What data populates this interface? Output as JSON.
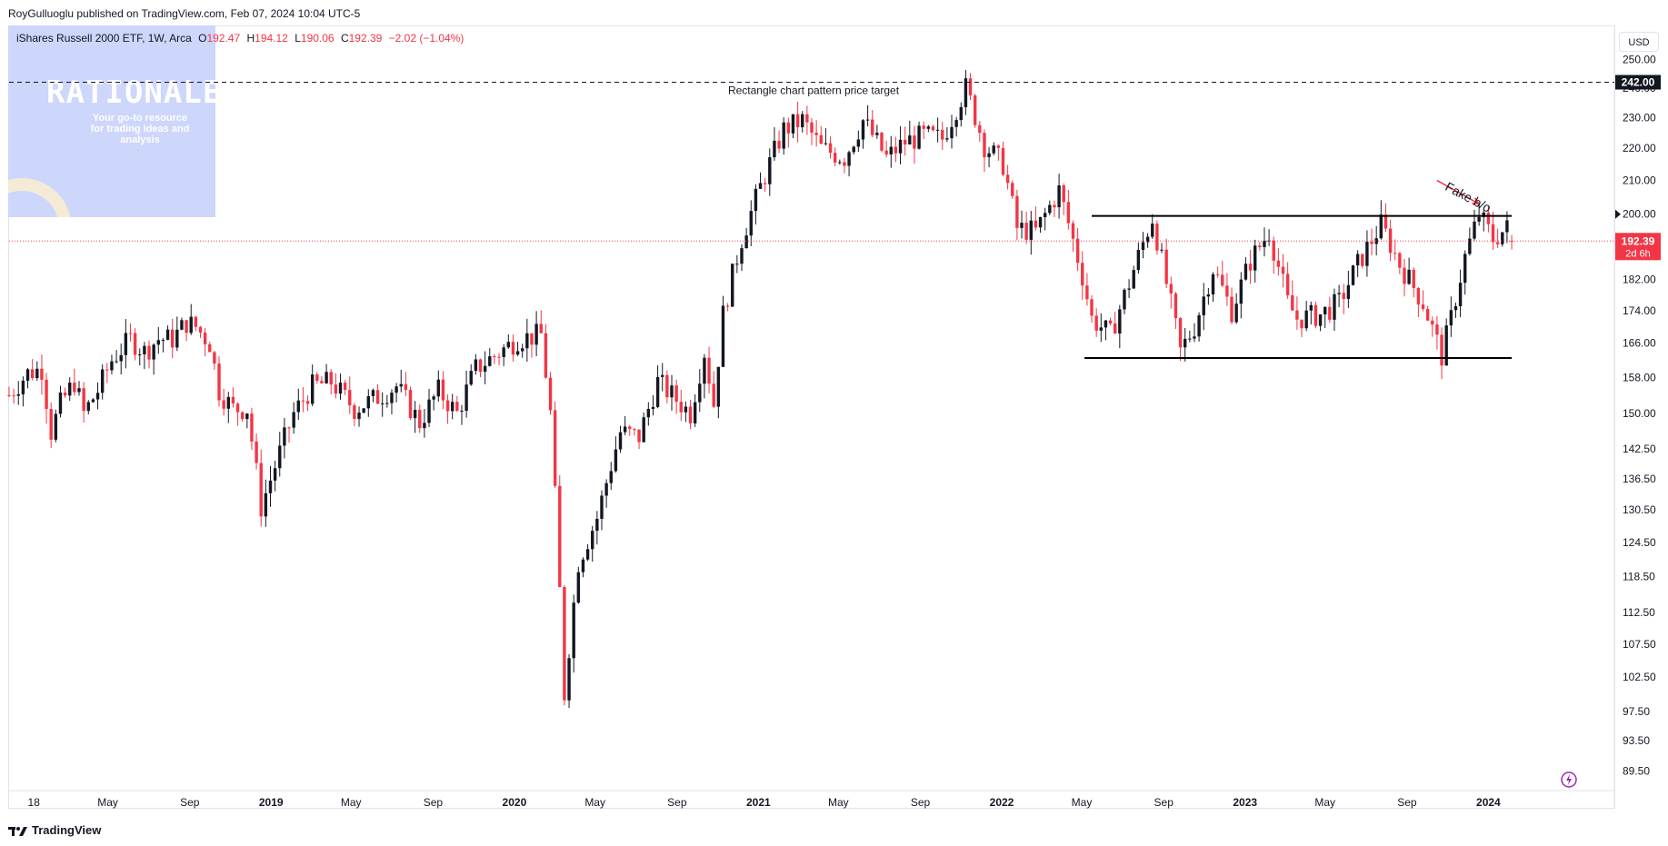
{
  "header": {
    "publisher": "RoyGulluoglu published on TradingView.com, Feb 07, 2024 10:04 UTC-5"
  },
  "legend": {
    "symbol": "iShares Russell 2000 ETF, 1W, Arca",
    "o_label": "O",
    "o_value": "192.47",
    "h_label": "H",
    "h_value": "194.12",
    "l_label": "L",
    "l_value": "190.06",
    "c_label": "C",
    "c_value": "192.39",
    "change": "−2.02 (−1.04%)"
  },
  "currency_button": "USD",
  "watermark": {
    "title": "RATIONALE",
    "tagline": "Your go-to resource for trading ideas and analysis"
  },
  "footer": {
    "brand": "TradingView"
  },
  "colors": {
    "up": "#131722",
    "down": "#f23645",
    "price_line": "#f23645",
    "axis_text": "#131722",
    "annotation_arrow": "#f23645"
  },
  "chart_data": {
    "type": "candlestick",
    "title": "iShares Russell 2000 ETF, 1W, Arca",
    "x_ticks": [
      "18",
      "May",
      "Sep",
      "2019",
      "May",
      "Sep",
      "2020",
      "May",
      "Sep",
      "2021",
      "May",
      "Sep",
      "2022",
      "May",
      "Sep",
      "2023",
      "May",
      "Sep",
      "2024"
    ],
    "x_tick_dates": [
      "2018-01-01",
      "2018-05-01",
      "2018-09-01",
      "2019-01-01",
      "2019-05-01",
      "2019-09-01",
      "2020-01-01",
      "2020-05-01",
      "2020-09-01",
      "2021-01-01",
      "2021-05-01",
      "2021-09-01",
      "2022-01-01",
      "2022-05-01",
      "2022-09-01",
      "2023-01-01",
      "2023-05-01",
      "2023-09-01",
      "2024-01-01"
    ],
    "bold_ticks": [
      "2019",
      "2020",
      "2021",
      "2022",
      "2023",
      "2024"
    ],
    "y_ticks": [
      "250.00",
      "240.00",
      "230.00",
      "220.00",
      "210.00",
      "200.00",
      "182.00",
      "174.00",
      "166.00",
      "158.00",
      "150.00",
      "142.50",
      "136.50",
      "130.50",
      "124.50",
      "118.50",
      "112.50",
      "107.50",
      "102.50",
      "97.50",
      "93.50",
      "89.50"
    ],
    "y_tick_values": [
      250,
      240,
      230,
      220,
      210,
      200,
      182,
      174,
      166,
      158,
      150,
      142.5,
      136.5,
      130.5,
      124.5,
      118.5,
      112.5,
      107.5,
      102.5,
      97.5,
      93.5,
      89.5
    ],
    "y_scale": "log",
    "ylim": [
      87,
      262
    ],
    "xlim": [
      "2017-12-04",
      "2024-07-08"
    ],
    "price_line": {
      "value": 192.39,
      "label": "192.39",
      "countdown": "2d 6h"
    },
    "target_line": {
      "value": 242.0,
      "label": "242.00",
      "text": "Rectangle chart pattern price target"
    },
    "rectangle": {
      "top": 199.5,
      "bottom": 162.5,
      "start": "2022-05-16",
      "end": "2024-02-05"
    },
    "resistance_marker": "200.00",
    "annotation": {
      "text": "Fake b/o",
      "arrow_from": [
        "2023-10-16",
        210
      ],
      "arrow_to": [
        "2023-12-18",
        203
      ]
    },
    "weekly_closes": [
      {
        "d": "2017-12-04",
        "c": 154.0
      },
      {
        "d": "2018-01-01",
        "c": 159.0
      },
      {
        "d": "2018-01-22",
        "c": 160.0
      },
      {
        "d": "2018-02-05",
        "c": 146.0
      },
      {
        "d": "2018-02-19",
        "c": 152.0
      },
      {
        "d": "2018-03-12",
        "c": 157.0
      },
      {
        "d": "2018-03-26",
        "c": 150.0
      },
      {
        "d": "2018-04-16",
        "c": 155.0
      },
      {
        "d": "2018-05-07",
        "c": 162.0
      },
      {
        "d": "2018-06-04",
        "c": 167.0
      },
      {
        "d": "2018-06-25",
        "c": 164.0
      },
      {
        "d": "2018-07-16",
        "c": 167.0
      },
      {
        "d": "2018-08-06",
        "c": 167.0
      },
      {
        "d": "2018-08-27",
        "c": 171.0
      },
      {
        "d": "2018-09-10",
        "c": 170.0
      },
      {
        "d": "2018-10-01",
        "c": 166.0
      },
      {
        "d": "2018-10-15",
        "c": 155.0
      },
      {
        "d": "2018-11-05",
        "c": 151.0
      },
      {
        "d": "2018-11-26",
        "c": 151.0
      },
      {
        "d": "2018-12-17",
        "c": 131.0
      },
      {
        "d": "2019-01-07",
        "c": 139.0
      },
      {
        "d": "2019-02-04",
        "c": 150.0
      },
      {
        "d": "2019-03-04",
        "c": 156.0
      },
      {
        "d": "2019-04-01",
        "c": 157.0
      },
      {
        "d": "2019-05-06",
        "c": 151.0
      },
      {
        "d": "2019-06-03",
        "c": 153.0
      },
      {
        "d": "2019-07-08",
        "c": 156.0
      },
      {
        "d": "2019-08-12",
        "c": 148.0
      },
      {
        "d": "2019-09-09",
        "c": 155.0
      },
      {
        "d": "2019-10-07",
        "c": 150.0
      },
      {
        "d": "2019-11-04",
        "c": 160.0
      },
      {
        "d": "2019-12-02",
        "c": 163.0
      },
      {
        "d": "2020-01-06",
        "c": 167.0
      },
      {
        "d": "2020-02-10",
        "c": 168.0
      },
      {
        "d": "2020-02-24",
        "c": 150.0
      },
      {
        "d": "2020-03-09",
        "c": 116.0
      },
      {
        "d": "2020-03-16",
        "c": 100.0
      },
      {
        "d": "2020-04-06",
        "c": 121.0
      },
      {
        "d": "2020-05-04",
        "c": 129.0
      },
      {
        "d": "2020-06-08",
        "c": 146.0
      },
      {
        "d": "2020-07-06",
        "c": 145.0
      },
      {
        "d": "2020-08-03",
        "c": 157.0
      },
      {
        "d": "2020-09-21",
        "c": 150.0
      },
      {
        "d": "2020-10-12",
        "c": 164.0
      },
      {
        "d": "2020-10-26",
        "c": 152.0
      },
      {
        "d": "2020-11-09",
        "c": 173.0
      },
      {
        "d": "2020-12-07",
        "c": 193.0
      },
      {
        "d": "2021-01-04",
        "c": 208.0
      },
      {
        "d": "2021-02-08",
        "c": 226.0
      },
      {
        "d": "2021-03-08",
        "c": 229.0
      },
      {
        "d": "2021-04-05",
        "c": 220.0
      },
      {
        "d": "2021-05-10",
        "c": 217.0
      },
      {
        "d": "2021-06-07",
        "c": 229.0
      },
      {
        "d": "2021-07-12",
        "c": 217.0
      },
      {
        "d": "2021-08-09",
        "c": 222.0
      },
      {
        "d": "2021-09-06",
        "c": 224.0
      },
      {
        "d": "2021-10-04",
        "c": 223.0
      },
      {
        "d": "2021-11-08",
        "c": 240.0
      },
      {
        "d": "2021-12-06",
        "c": 221.0
      },
      {
        "d": "2022-01-03",
        "c": 215.0
      },
      {
        "d": "2022-01-24",
        "c": 196.0
      },
      {
        "d": "2022-02-21",
        "c": 195.0
      },
      {
        "d": "2022-03-28",
        "c": 207.0
      },
      {
        "d": "2022-05-02",
        "c": 183.0
      },
      {
        "d": "2022-05-16",
        "c": 172.0
      },
      {
        "d": "2022-06-13",
        "c": 168.0
      },
      {
        "d": "2022-07-11",
        "c": 181.0
      },
      {
        "d": "2022-08-15",
        "c": 199.0
      },
      {
        "d": "2022-09-05",
        "c": 181.0
      },
      {
        "d": "2022-09-26",
        "c": 164.0
      },
      {
        "d": "2022-10-17",
        "c": 170.0
      },
      {
        "d": "2022-11-14",
        "c": 185.0
      },
      {
        "d": "2022-12-12",
        "c": 174.0
      },
      {
        "d": "2023-01-09",
        "c": 187.0
      },
      {
        "d": "2023-02-06",
        "c": 195.0
      },
      {
        "d": "2023-03-06",
        "c": 176.0
      },
      {
        "d": "2023-03-20",
        "c": 172.0
      },
      {
        "d": "2023-04-24",
        "c": 173.0
      },
      {
        "d": "2023-05-22",
        "c": 176.0
      },
      {
        "d": "2023-06-19",
        "c": 186.0
      },
      {
        "d": "2023-07-24",
        "c": 197.0
      },
      {
        "d": "2023-08-21",
        "c": 186.0
      },
      {
        "d": "2023-09-25",
        "c": 176.0
      },
      {
        "d": "2023-10-23",
        "c": 163.0
      },
      {
        "d": "2023-11-06",
        "c": 172.0
      },
      {
        "d": "2023-11-27",
        "c": 188.0
      },
      {
        "d": "2023-12-18",
        "c": 200.0
      },
      {
        "d": "2024-01-08",
        "c": 193.0
      },
      {
        "d": "2024-01-29",
        "c": 196.0
      },
      {
        "d": "2024-02-05",
        "c": 192.39
      }
    ]
  }
}
